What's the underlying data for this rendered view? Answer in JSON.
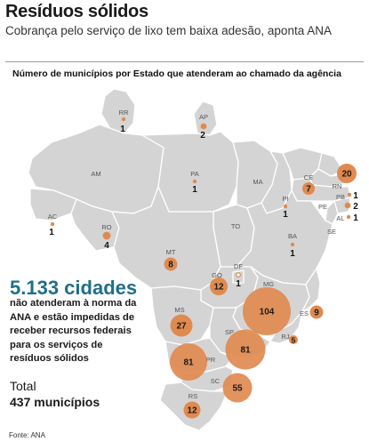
{
  "header": {
    "title": "Resíduos sólidos",
    "subtitle": "Cobrança pelo serviço de lixo tem baixa adesão, aponta ANA",
    "caption": "Número de municípios por Estado que atenderam ao chamado da agência"
  },
  "highlight": {
    "number": "5.133 cidades",
    "text": "não atenderam à norma da ANA e estão impedidas de receber recursos federais para os serviços de resíduos sólidos"
  },
  "total": {
    "label": "Total",
    "value": "437 municípios"
  },
  "source": "Fonte: ANA",
  "colors": {
    "land": "#d4d4d4",
    "border": "#ffffff",
    "bubble": "#e08a50",
    "highlight_text": "#1e6f8a"
  },
  "states": [
    {
      "abbr": "RR",
      "value": 1
    },
    {
      "abbr": "AP",
      "value": 2
    },
    {
      "abbr": "AM",
      "value": null
    },
    {
      "abbr": "PA",
      "value": 1
    },
    {
      "abbr": "MA",
      "value": null
    },
    {
      "abbr": "CE",
      "value": 7
    },
    {
      "abbr": "RN",
      "value": 20
    },
    {
      "abbr": "PB",
      "value": 1
    },
    {
      "abbr": "PE",
      "value": 2
    },
    {
      "abbr": "AL",
      "value": 1
    },
    {
      "abbr": "SE",
      "value": null
    },
    {
      "abbr": "PI",
      "value": 1
    },
    {
      "abbr": "AC",
      "value": 1
    },
    {
      "abbr": "RO",
      "value": 4
    },
    {
      "abbr": "TO",
      "value": null
    },
    {
      "abbr": "BA",
      "value": 1
    },
    {
      "abbr": "MT",
      "value": 8
    },
    {
      "abbr": "DF",
      "value": 1
    },
    {
      "abbr": "GO",
      "value": 12
    },
    {
      "abbr": "MG",
      "value": 104
    },
    {
      "abbr": "ES",
      "value": 9
    },
    {
      "abbr": "MS",
      "value": 27
    },
    {
      "abbr": "SP",
      "value": 81
    },
    {
      "abbr": "RJ",
      "value": 5
    },
    {
      "abbr": "PR",
      "value": 81
    },
    {
      "abbr": "SC",
      "value": 55
    },
    {
      "abbr": "RS",
      "value": 12
    }
  ]
}
